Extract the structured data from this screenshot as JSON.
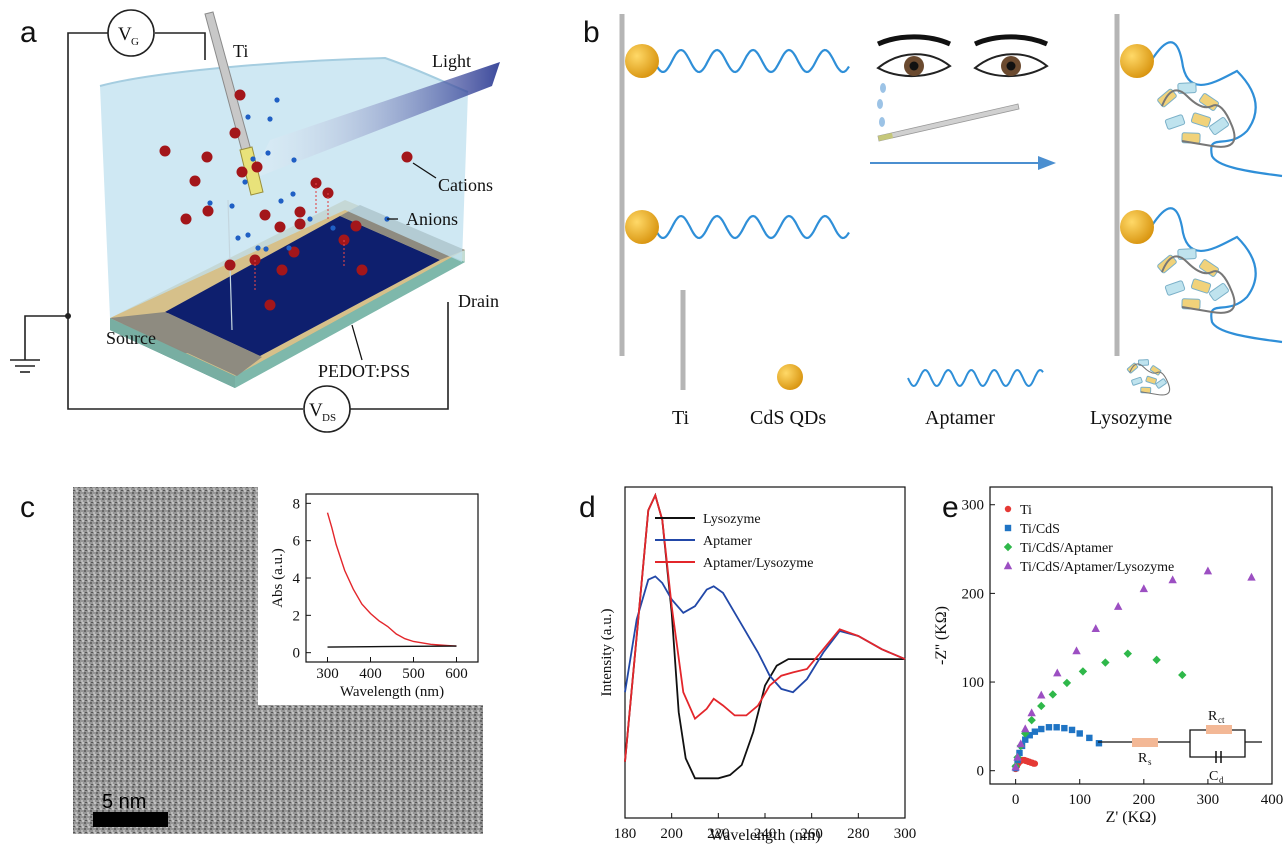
{
  "panels": {
    "a": {
      "label": "a",
      "vg": {
        "main": "V",
        "sub": "G"
      },
      "vds": {
        "main": "V",
        "sub": "DS"
      },
      "ti": "Ti",
      "light": "Light",
      "cations": "Cations",
      "anions": "Anions",
      "drain": "Drain",
      "source": "Source",
      "pedot": "PEDOT:PSS"
    },
    "b": {
      "label": "b",
      "legend": [
        "Ti",
        "CdS QDs",
        "Aptamer",
        "Lysozyme"
      ]
    },
    "c": {
      "label": "c",
      "scalebar": "5 nm"
    },
    "d": {
      "label": "d"
    },
    "e": {
      "label": "e"
    }
  },
  "colors": {
    "gold": "#f2b224",
    "aptamer": "#2f8fd8",
    "cation": "#a3161a",
    "anion": "#1f5fc4",
    "channel": "#0e1f6e",
    "electrolyte": "#bfe0ef",
    "series_black": "#111111",
    "series_blue": "#2248a8",
    "series_red": "#e3262b",
    "ti_point": "#e53935",
    "cds_point": "#1f74c4",
    "aptamer_point": "#2fb84a",
    "lysozyme_point": "#9c4fc2",
    "resistor": "#f3b896"
  },
  "chart_data": [
    {
      "id": "c-inset",
      "type": "line",
      "xlabel": "Wavelength (nm)",
      "ylabel": "Abs (a.u.)",
      "xlim": [
        250,
        650
      ],
      "ylim": [
        -0.5,
        8.5
      ],
      "xticks": [
        300,
        400,
        500,
        600
      ],
      "yticks": [
        0,
        2,
        4,
        6,
        8
      ],
      "series": [
        {
          "color": "#e3262b",
          "x": [
            300,
            310,
            320,
            340,
            360,
            380,
            400,
            420,
            430,
            440,
            460,
            480,
            500,
            540,
            580,
            600
          ],
          "y": [
            7.5,
            6.7,
            5.8,
            4.4,
            3.4,
            2.6,
            2.1,
            1.7,
            1.55,
            1.4,
            1.0,
            0.75,
            0.6,
            0.45,
            0.38,
            0.35
          ]
        },
        {
          "color": "#111111",
          "x": [
            300,
            400,
            500,
            600
          ],
          "y": [
            0.3,
            0.32,
            0.34,
            0.35
          ]
        }
      ]
    },
    {
      "id": "d",
      "type": "line",
      "xlabel": "Wavelength (nm)",
      "ylabel": "Intensity (a.u.)",
      "xlim": [
        180,
        300
      ],
      "ylim": [
        0,
        1
      ],
      "xticks": [
        180,
        200,
        220,
        240,
        260,
        280,
        300
      ],
      "series": [
        {
          "name": "Lysozyme",
          "color": "#111111",
          "x": [
            180,
            185,
            190,
            193,
            196,
            200,
            203,
            206,
            210,
            215,
            220,
            225,
            230,
            235,
            240,
            245,
            250,
            260,
            270,
            280,
            290,
            300
          ],
          "y": [
            0.17,
            0.55,
            0.93,
            0.975,
            0.9,
            0.62,
            0.32,
            0.18,
            0.12,
            0.12,
            0.12,
            0.13,
            0.16,
            0.26,
            0.4,
            0.46,
            0.48,
            0.48,
            0.48,
            0.48,
            0.48,
            0.48
          ]
        },
        {
          "name": "Aptamer",
          "color": "#2248a8",
          "x": [
            180,
            185,
            190,
            193,
            196,
            200,
            205,
            210,
            215,
            218,
            222,
            227,
            232,
            237,
            242,
            247,
            252,
            258,
            265,
            272,
            280,
            290,
            300
          ],
          "y": [
            0.38,
            0.6,
            0.72,
            0.73,
            0.71,
            0.66,
            0.62,
            0.64,
            0.69,
            0.7,
            0.68,
            0.62,
            0.56,
            0.5,
            0.43,
            0.39,
            0.38,
            0.42,
            0.5,
            0.565,
            0.55,
            0.51,
            0.48
          ]
        },
        {
          "name": "Aptamer/Lysozyme",
          "color": "#e3262b",
          "x": [
            180,
            185,
            190,
            193,
            196,
            200,
            205,
            210,
            215,
            218,
            222,
            227,
            232,
            237,
            242,
            247,
            252,
            258,
            265,
            272,
            280,
            290,
            300
          ],
          "y": [
            0.17,
            0.55,
            0.93,
            0.975,
            0.9,
            0.64,
            0.38,
            0.3,
            0.33,
            0.36,
            0.34,
            0.31,
            0.31,
            0.34,
            0.4,
            0.43,
            0.44,
            0.45,
            0.51,
            0.57,
            0.55,
            0.51,
            0.48
          ]
        }
      ]
    },
    {
      "id": "e",
      "type": "scatter",
      "xlabel": "Z' (KΩ)",
      "ylabel": "-Z'' (KΩ)",
      "xlim": [
        -40,
        400
      ],
      "ylim": [
        -15,
        320
      ],
      "xticks": [
        0,
        100,
        200,
        300,
        400
      ],
      "yticks": [
        0,
        100,
        200,
        300
      ],
      "circuit_labels": {
        "rct": "R",
        "rct_sub": "ct",
        "rs": "R",
        "rs_sub": "s",
        "cd": "C",
        "cd_sub": "d"
      },
      "series": [
        {
          "name": "Ti",
          "marker": "circle",
          "color": "#e53935",
          "x": [
            0,
            2,
            4,
            6,
            8,
            10,
            12,
            14,
            16,
            18,
            20,
            22,
            24,
            26,
            28,
            30
          ],
          "y": [
            2,
            5,
            8,
            10,
            11,
            12,
            12,
            12,
            11,
            11,
            10,
            10,
            9,
            9,
            8,
            8
          ]
        },
        {
          "name": "Ti/CdS",
          "marker": "square",
          "color": "#1f74c4",
          "x": [
            0,
            3,
            6,
            10,
            15,
            22,
            30,
            40,
            52,
            64,
            76,
            88,
            100,
            115,
            130
          ],
          "y": [
            3,
            12,
            20,
            28,
            35,
            40,
            44,
            47,
            49,
            49,
            48,
            46,
            42,
            37,
            31
          ]
        },
        {
          "name": "Ti/CdS/Aptamer",
          "marker": "diamond",
          "color": "#2fb84a",
          "x": [
            0,
            3,
            8,
            15,
            25,
            40,
            58,
            80,
            105,
            140,
            175,
            220,
            260
          ],
          "y": [
            5,
            15,
            28,
            42,
            57,
            73,
            86,
            99,
            112,
            122,
            132,
            125,
            108
          ]
        },
        {
          "name": "Ti/CdS/Aptamer/Lysozyme",
          "marker": "triangle",
          "color": "#9c4fc2",
          "x": [
            0,
            3,
            8,
            15,
            25,
            40,
            65,
            95,
            125,
            160,
            200,
            245,
            300,
            368
          ],
          "y": [
            4,
            15,
            30,
            47,
            65,
            85,
            110,
            135,
            160,
            185,
            205,
            215,
            225,
            218
          ]
        }
      ]
    }
  ]
}
